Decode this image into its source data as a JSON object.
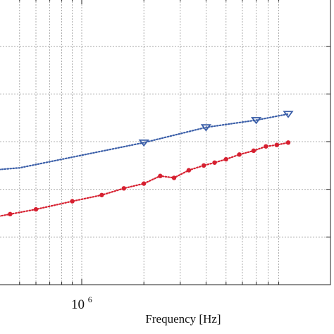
{
  "chart_data": {
    "type": "line",
    "title": "",
    "xlabel": "Frequency [Hz]",
    "ylabel": "",
    "x_scale": "log",
    "xlim": [
      100000.0,
      10000000.0
    ],
    "ylim": [
      0,
      6
    ],
    "grid": true,
    "legend": "none",
    "x_tick_labels": [
      {
        "value": 1000000.0,
        "base": "10",
        "exponent": "6"
      }
    ],
    "series": [
      {
        "color": "#3a5ea8",
        "line_style": "dotted",
        "marker": "triangle-down",
        "x": [
          100000.0,
          500000.0,
          2000000.0,
          4000000.0,
          7000000.0,
          10000000.0
        ],
        "y": [
          2.2,
          2.45,
          2.98,
          3.3,
          3.45,
          3.58
        ],
        "marker_x": [
          2000000.0,
          4000000.0,
          7000000.0,
          10000000.0
        ],
        "marker_y": [
          2.98,
          3.3,
          3.45,
          3.58
        ]
      },
      {
        "color": "#d62030",
        "line_style": "dotted",
        "marker": "circle",
        "x": [
          100000.0,
          150000.0,
          250000.0,
          350000.0,
          450000.0,
          600000.0,
          900000.0,
          1250000.0,
          1600000.0,
          2000000.0,
          2400000.0,
          2800000.0,
          3300000.0,
          3900000.0,
          4400000.0,
          5000000.0,
          5800000.0,
          6800000.0,
          7800000.0,
          8800000.0,
          10000000.0
        ],
        "y": [
          1.22,
          1.26,
          1.31,
          1.39,
          1.48,
          1.58,
          1.75,
          1.88,
          2.02,
          2.12,
          2.28,
          2.24,
          2.4,
          2.5,
          2.56,
          2.63,
          2.73,
          2.81,
          2.9,
          2.93,
          2.98
        ]
      }
    ]
  }
}
